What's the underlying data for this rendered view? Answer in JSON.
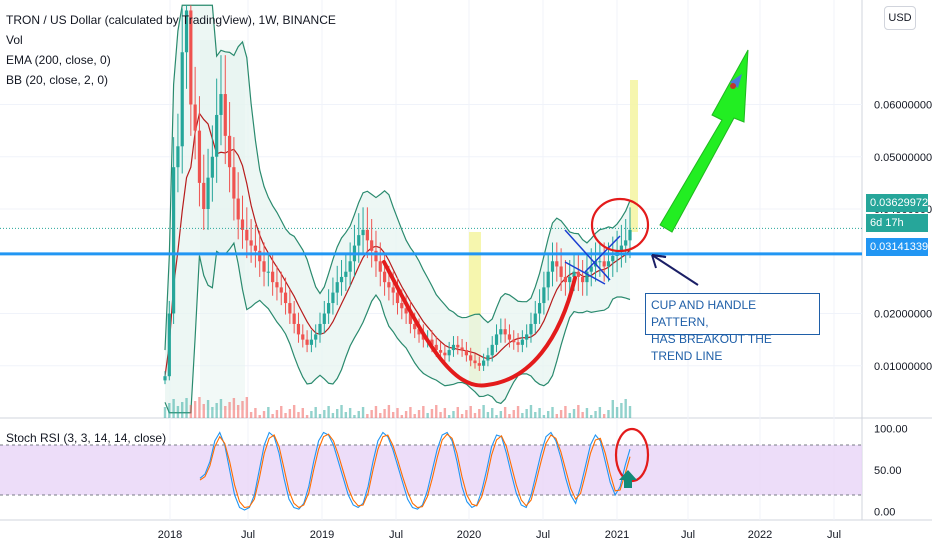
{
  "header": {
    "title": "TRON / US Dollar (calculated by TradingView), 1W, BINANCE",
    "indicators": [
      "Vol",
      "EMA (200, close, 0)",
      "BB (20, close, 2, 0)"
    ],
    "currency_button": "USD"
  },
  "price_tags": {
    "last_price": "0.03629972",
    "countdown": "6d 17h",
    "line_level": "0.03141339"
  },
  "annotation": {
    "line1": "CUP AND HANDLE PATTERN,",
    "line2": "HAS BREAKOUT THE TREND LINE"
  },
  "colors": {
    "candle_up": "#26a69a",
    "candle_down": "#ef5350",
    "bollinger": "#2a8a6e",
    "bollinger_fill": "#e6f4ef",
    "ema": "#b71c1c",
    "horizontal_line": "#2196f3",
    "highlight": "#f5f5a0",
    "annotation_red": "#e31b1b",
    "arrow_green": "#22ee22",
    "stoch_k": "#2196f3",
    "stoch_d": "#ff6d00",
    "stoch_band": "#e8d5f8"
  },
  "chart_data": [
    {
      "type": "candlestick",
      "title": "TRON / US Dollar (calculated by TradingView), 1W, BINANCE",
      "x_tick_labels": [
        "2018",
        "Jul",
        "2019",
        "Jul",
        "2020",
        "Jul",
        "2021",
        "Jul",
        "2022",
        "Jul"
      ],
      "y_tick_labels": [
        "0.06000000",
        "0.05000000",
        "0.04000000",
        "0.02000000",
        "0.01000000"
      ],
      "y_ticks": [
        0.06,
        0.05,
        0.04,
        0.02,
        0.01
      ],
      "ylim": [
        0.0,
        0.08
      ],
      "horizontal_line": 0.03141339,
      "last_price": 0.03629972,
      "series_close": [
        0.008,
        0.02,
        0.048,
        0.052,
        0.07,
        0.078,
        0.06,
        0.055,
        0.045,
        0.04,
        0.046,
        0.05,
        0.058,
        0.062,
        0.054,
        0.048,
        0.042,
        0.038,
        0.036,
        0.034,
        0.033,
        0.032,
        0.03,
        0.028,
        0.028,
        0.026,
        0.025,
        0.024,
        0.022,
        0.02,
        0.018,
        0.016,
        0.015,
        0.014,
        0.015,
        0.016,
        0.018,
        0.02,
        0.022,
        0.024,
        0.026,
        0.027,
        0.028,
        0.03,
        0.033,
        0.035,
        0.036,
        0.034,
        0.032,
        0.03,
        0.028,
        0.026,
        0.025,
        0.024,
        0.022,
        0.021,
        0.02,
        0.018,
        0.017,
        0.016,
        0.015,
        0.015,
        0.014,
        0.013,
        0.0125,
        0.012,
        0.013,
        0.014,
        0.0135,
        0.013,
        0.012,
        0.011,
        0.0105,
        0.01,
        0.011,
        0.012,
        0.014,
        0.016,
        0.017,
        0.016,
        0.015,
        0.0145,
        0.014,
        0.015,
        0.016,
        0.018,
        0.02,
        0.022,
        0.025,
        0.028,
        0.03,
        0.029,
        0.027,
        0.026,
        0.027,
        0.028,
        0.027,
        0.026,
        0.028,
        0.029,
        0.03,
        0.03,
        0.029,
        0.03,
        0.031,
        0.032,
        0.033,
        0.034,
        0.036
      ],
      "highlight_periods": [
        "2020 (Jan)",
        "2021 (Mar)"
      ]
    },
    {
      "type": "line",
      "title": "Stoch RSI (3, 3, 14, 14, close)",
      "y_tick_labels": [
        "100.00",
        "50.00",
        "0.00"
      ],
      "y_ticks": [
        100,
        50,
        0
      ],
      "ylim": [
        -10,
        110
      ],
      "band": [
        20,
        80
      ],
      "series": [
        {
          "values": [
            40,
            45,
            60,
            85,
            95,
            80,
            50,
            20,
            5,
            2,
            5,
            20,
            50,
            80,
            95,
            90,
            70,
            40,
            15,
            5,
            3,
            10,
            30,
            60,
            85,
            95,
            92,
            80,
            60,
            40,
            20,
            8,
            5,
            10,
            30,
            60,
            85,
            95,
            90,
            75,
            55,
            35,
            15,
            5,
            3,
            8,
            25,
            50,
            75,
            92,
            95,
            85,
            60,
            30,
            12,
            5,
            8,
            25,
            50,
            78,
            92,
            90,
            70,
            45,
            22,
            8,
            5,
            20,
            45,
            70,
            90,
            95,
            85,
            65,
            40,
            20,
            10,
            30,
            55,
            80,
            92,
            85,
            60,
            35,
            20,
            30,
            55,
            75
          ]
        },
        {
          "values": [
            38,
            42,
            55,
            78,
            90,
            82,
            60,
            32,
            12,
            5,
            6,
            15,
            40,
            70,
            88,
            92,
            78,
            52,
            25,
            10,
            5,
            8,
            22,
            50,
            75,
            90,
            93,
            85,
            68,
            48,
            28,
            14,
            7,
            8,
            22,
            50,
            75,
            90,
            92,
            80,
            62,
            42,
            24,
            10,
            5,
            6,
            18,
            40,
            65,
            86,
            93,
            88,
            70,
            42,
            20,
            9,
            7,
            18,
            40,
            68,
            86,
            91,
            78,
            55,
            32,
            14,
            7,
            14,
            36,
            60,
            82,
            92,
            88,
            72,
            50,
            28,
            15,
            22,
            45,
            70,
            86,
            88,
            70,
            45,
            25,
            26,
            45,
            66
          ]
        }
      ]
    }
  ]
}
